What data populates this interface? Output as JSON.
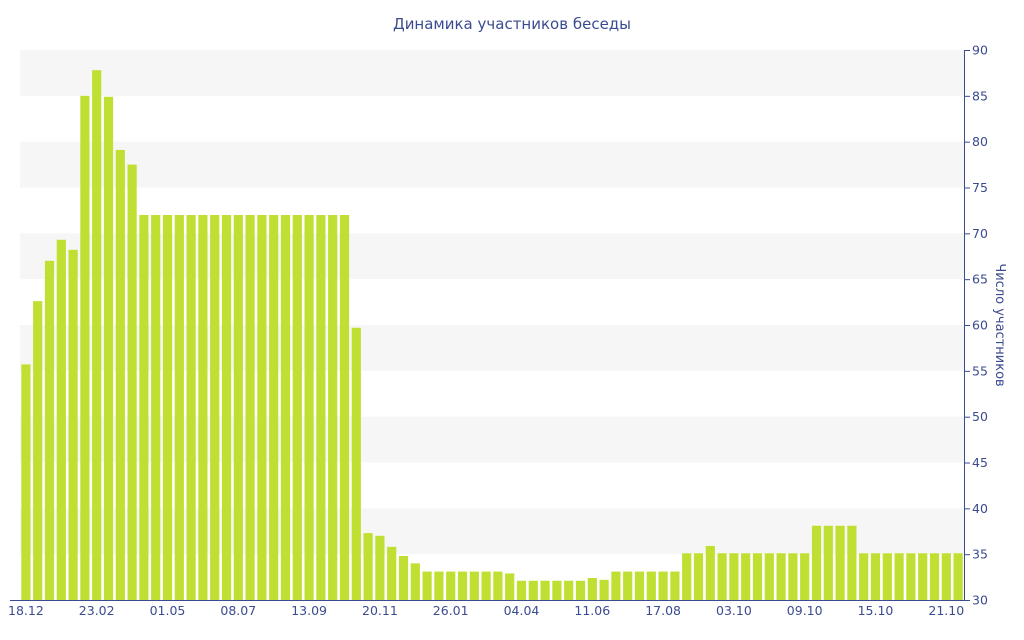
{
  "chart_data": {
    "type": "bar",
    "title": "Динамика участников беседы",
    "ylabel": "Число участников",
    "y_axis_side": "right",
    "ylim": [
      30,
      90
    ],
    "y_ticks": [
      30,
      35,
      40,
      45,
      50,
      55,
      60,
      65,
      70,
      75,
      80,
      85,
      90
    ],
    "grid": "alternating horizontal bands",
    "bar_color": "#bfe032",
    "band_color": "#f6f6f6",
    "text_color": "#3b4b8f",
    "x_tick_labels": [
      {
        "index": 0,
        "label": "18.12"
      },
      {
        "index": 6,
        "label": "23.02"
      },
      {
        "index": 12,
        "label": "01.05"
      },
      {
        "index": 18,
        "label": "08.07"
      },
      {
        "index": 24,
        "label": "13.09"
      },
      {
        "index": 30,
        "label": "20.11"
      },
      {
        "index": 36,
        "label": "26.01"
      },
      {
        "index": 42,
        "label": "04.04"
      },
      {
        "index": 48,
        "label": "11.06"
      },
      {
        "index": 54,
        "label": "17.08"
      },
      {
        "index": 60,
        "label": "03.10"
      },
      {
        "index": 66,
        "label": "09.10"
      },
      {
        "index": 72,
        "label": "15.10"
      },
      {
        "index": 78,
        "label": "21.10"
      }
    ],
    "values": [
      55.7,
      62.6,
      67,
      69.3,
      68.2,
      85,
      87.8,
      84.9,
      79.1,
      77.5,
      72,
      72,
      72,
      72,
      72,
      72,
      72,
      72,
      72,
      72,
      72,
      72,
      72,
      72,
      72,
      72,
      72,
      72,
      59.7,
      37.3,
      37,
      35.8,
      34.8,
      34,
      33.1,
      33.1,
      33.1,
      33.1,
      33.1,
      33.1,
      33.1,
      32.9,
      32.1,
      32.1,
      32.1,
      32.1,
      32.1,
      32.1,
      32.4,
      32.2,
      33.1,
      33.1,
      33.1,
      33.1,
      33.1,
      33.1,
      35.1,
      35.1,
      35.9,
      35.1,
      35.1,
      35.1,
      35.1,
      35.1,
      35.1,
      35.1,
      35.1,
      38.1,
      38.1,
      38.1,
      38.1,
      35.1,
      35.1,
      35.1,
      35.1,
      35.1,
      35.1,
      35.1,
      35.1,
      35.1
    ]
  }
}
